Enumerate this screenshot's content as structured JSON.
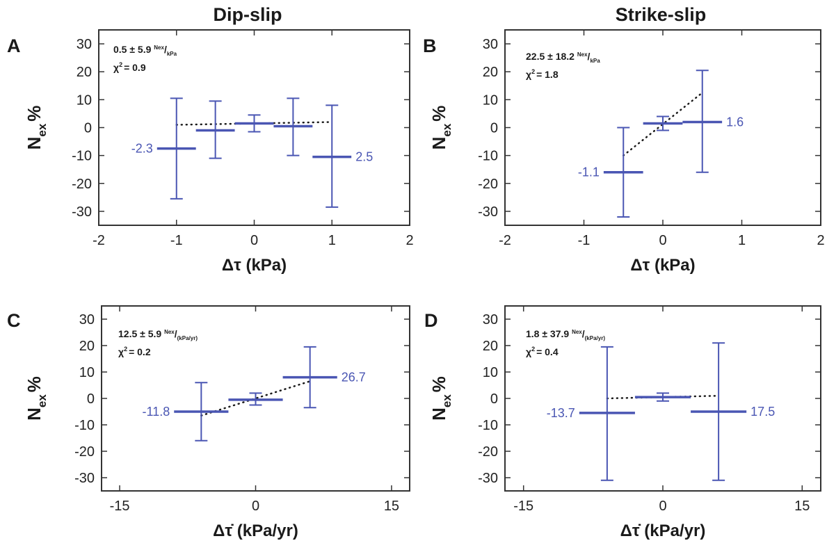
{
  "column_titles": [
    "Dip-slip",
    "Strike-slip"
  ],
  "colors": {
    "data": "#4a56b3",
    "axis": "#333333",
    "fit": "#1a1a1a"
  },
  "chart_data": [
    {
      "panel": "A",
      "type": "scatter",
      "column": "Dip-slip",
      "ylabel_main": "N",
      "ylabel_sub": "ex",
      "ylabel_suffix": "%",
      "xlabel": "Δτ (kPa)",
      "xlim": [
        -2,
        2
      ],
      "ylim": [
        -35,
        35
      ],
      "xticks": [
        -2,
        -1,
        0,
        1,
        2
      ],
      "xtick_labels": [
        "-2",
        "-1",
        "0",
        "1",
        "2"
      ],
      "yticks": [
        30,
        20,
        10,
        0,
        -10,
        -20,
        -30
      ],
      "annotation": {
        "value": "0.5 ± 5.9",
        "unit_sup": "Nex",
        "unit_sub": "kPa",
        "chi2": "= 0.9"
      },
      "points": [
        {
          "x": -1.0,
          "y": -7.5,
          "xerr": 0.25,
          "ylow": -25.5,
          "yhigh": 10.5,
          "label": "-2.3",
          "label_side": "left"
        },
        {
          "x": -0.5,
          "y": -1.0,
          "xerr": 0.25,
          "ylow": -11.0,
          "yhigh": 9.5
        },
        {
          "x": 0.0,
          "y": 1.5,
          "xerr": 0.25,
          "ylow": -1.5,
          "yhigh": 4.5
        },
        {
          "x": 0.5,
          "y": 0.5,
          "xerr": 0.25,
          "ylow": -10.0,
          "yhigh": 10.5
        },
        {
          "x": 1.0,
          "y": -10.5,
          "xerr": 0.25,
          "ylow": -28.5,
          "yhigh": 8.0,
          "label": "2.5",
          "label_side": "right"
        }
      ],
      "fit_line": [
        [
          -1.0,
          1.0
        ],
        [
          1.0,
          2.0
        ]
      ]
    },
    {
      "panel": "B",
      "type": "scatter",
      "column": "Strike-slip",
      "ylabel_main": "N",
      "ylabel_sub": "ex",
      "ylabel_suffix": "%",
      "xlabel": "Δτ (kPa)",
      "xlim": [
        -2,
        2
      ],
      "ylim": [
        -35,
        35
      ],
      "xticks": [
        -2,
        -1,
        0,
        1,
        2
      ],
      "xtick_labels": [
        "-2",
        "-1",
        "0",
        "1",
        "2"
      ],
      "yticks": [
        30,
        20,
        10,
        0,
        -10,
        -20,
        -30
      ],
      "annotation": {
        "value": "22.5 ± 18.2",
        "unit_sup": "Nex",
        "unit_sub": "kPa",
        "chi2": "= 1.8"
      },
      "points": [
        {
          "x": -0.5,
          "y": -16.0,
          "xerr": 0.25,
          "ylow": -32.0,
          "yhigh": 0.0,
          "label": "-1.1",
          "label_side": "left"
        },
        {
          "x": 0.0,
          "y": 1.5,
          "xerr": 0.25,
          "ylow": -1.0,
          "yhigh": 4.0
        },
        {
          "x": 0.5,
          "y": 2.0,
          "xerr": 0.25,
          "ylow": -16.0,
          "yhigh": 20.5,
          "label": "1.6",
          "label_side": "right"
        }
      ],
      "fit_line": [
        [
          -0.5,
          -10.0
        ],
        [
          0.5,
          12.5
        ]
      ]
    },
    {
      "panel": "C",
      "type": "scatter",
      "column": "Dip-slip",
      "ylabel_main": "N",
      "ylabel_sub": "ex",
      "ylabel_suffix": "%",
      "xlabel": "Δτ̇ (kPa/yr)",
      "xlim": [
        -17,
        17
      ],
      "ylim": [
        -35,
        35
      ],
      "xticks": [
        -15,
        0,
        15
      ],
      "xtick_labels": [
        "-15",
        "0",
        "15"
      ],
      "yticks": [
        30,
        20,
        10,
        0,
        -10,
        -20,
        -30
      ],
      "annotation": {
        "value": "12.5 ± 5.9",
        "unit_sup": "Nex",
        "unit_sub": "(kPa/yr)",
        "chi2": "= 0.2"
      },
      "points": [
        {
          "x": -6.0,
          "y": -5.0,
          "xerr": 3.0,
          "ylow": -16.0,
          "yhigh": 6.0,
          "label": "-11.8",
          "label_side": "left"
        },
        {
          "x": 0.0,
          "y": -0.5,
          "xerr": 3.0,
          "ylow": -2.5,
          "yhigh": 2.0
        },
        {
          "x": 6.0,
          "y": 8.0,
          "xerr": 3.0,
          "ylow": -3.5,
          "yhigh": 19.5,
          "label": "26.7",
          "label_side": "right"
        }
      ],
      "fit_line": [
        [
          -6.0,
          -6.5
        ],
        [
          6.0,
          6.5
        ]
      ]
    },
    {
      "panel": "D",
      "type": "scatter",
      "column": "Strike-slip",
      "ylabel_main": "N",
      "ylabel_sub": "ex",
      "ylabel_suffix": "%",
      "xlabel": "Δτ̇ (kPa/yr)",
      "xlim": [
        -17,
        17
      ],
      "ylim": [
        -35,
        35
      ],
      "xticks": [
        -15,
        0,
        15
      ],
      "xtick_labels": [
        "-15",
        "0",
        "15"
      ],
      "yticks": [
        30,
        20,
        10,
        0,
        -10,
        -20,
        -30
      ],
      "annotation": {
        "value": "1.8 ± 37.9",
        "unit_sup": "Nex",
        "unit_sub": "(kPa/yr)",
        "chi2": "= 0.4"
      },
      "points": [
        {
          "x": -6.0,
          "y": -5.5,
          "xerr": 3.0,
          "ylow": -31.0,
          "yhigh": 19.5,
          "label": "-13.7",
          "label_side": "left"
        },
        {
          "x": 0.0,
          "y": 0.5,
          "xerr": 3.0,
          "ylow": -1.0,
          "yhigh": 2.0
        },
        {
          "x": 6.0,
          "y": -5.0,
          "xerr": 3.0,
          "ylow": -31.0,
          "yhigh": 21.0,
          "label": "17.5",
          "label_side": "right"
        }
      ],
      "fit_line": [
        [
          -6.0,
          0.0
        ],
        [
          6.0,
          1.0
        ]
      ]
    }
  ]
}
